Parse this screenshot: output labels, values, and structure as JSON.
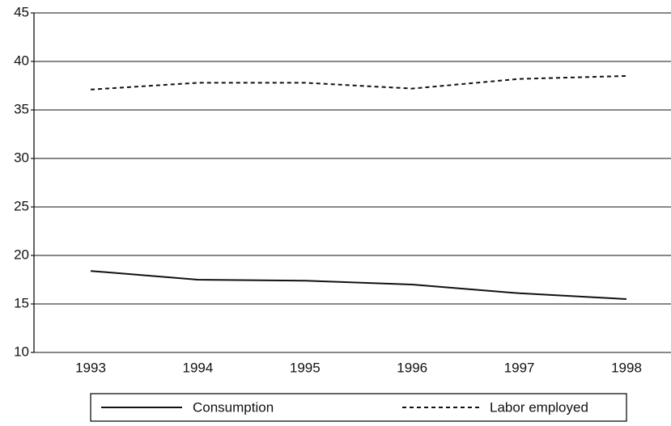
{
  "chart_data": {
    "type": "line",
    "categories": [
      "1993",
      "1994",
      "1995",
      "1996",
      "1997",
      "1998"
    ],
    "series": [
      {
        "name": "Consumption",
        "color": "#111111",
        "linestyle": "solid",
        "values": [
          18.4,
          17.5,
          17.4,
          17.0,
          16.1,
          15.5
        ]
      },
      {
        "name": "Labor employed",
        "color": "#111111",
        "linestyle": "dashed",
        "values": [
          37.1,
          37.8,
          37.8,
          37.2,
          38.2,
          38.5
        ]
      }
    ],
    "ylim": [
      10,
      45
    ],
    "yticks": [
      10,
      15,
      20,
      25,
      30,
      35,
      40,
      45
    ],
    "grid": true,
    "legend": "bottom"
  }
}
